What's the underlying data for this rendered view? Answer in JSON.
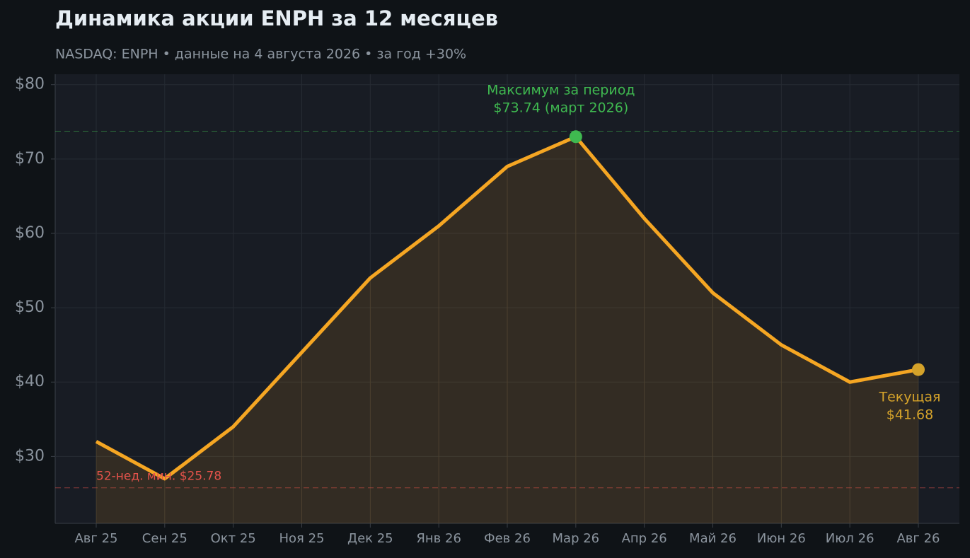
{
  "chart_data": {
    "type": "line",
    "title": "Динамика акции ENPH за 12 месяцев",
    "subtitle": "NASDAQ: ENPH  •  данные на 4 августа 2026  •  за год +30%",
    "categories": [
      "Авг 25",
      "Сен 25",
      "Окт 25",
      "Ноя 25",
      "Дек 25",
      "Янв 26",
      "Фев 26",
      "Мар 26",
      "Апр 26",
      "Май 26",
      "Июн 26",
      "Июл 26",
      "Авг 26"
    ],
    "series": [
      {
        "color": "#f5a623",
        "values": [
          32,
          27,
          34,
          44,
          54,
          61,
          69,
          73,
          62,
          52,
          45,
          40,
          41.68
        ]
      }
    ],
    "ylim": [
      21,
      81.4
    ],
    "yticks": [
      {
        "value": 30,
        "label": "$30"
      },
      {
        "value": 40,
        "label": "$40"
      },
      {
        "value": 50,
        "label": "$50"
      },
      {
        "value": 60,
        "label": "$60"
      },
      {
        "value": 70,
        "label": "$70"
      },
      {
        "value": 80,
        "label": "$80"
      }
    ],
    "grid": true,
    "max_line": {
      "value": 73.74,
      "color": "#3fb950",
      "point_index": 7,
      "label_lines": [
        "Максимум за период",
        "$73.74 (март 2026)"
      ]
    },
    "min_line": {
      "value": 25.78,
      "color": "#e5534b",
      "label": "52-нед. мин. $25.78"
    },
    "current": {
      "color": "#d4a22a",
      "point_index": 12,
      "label_lines": [
        "Текущая",
        "$41.68"
      ]
    }
  }
}
